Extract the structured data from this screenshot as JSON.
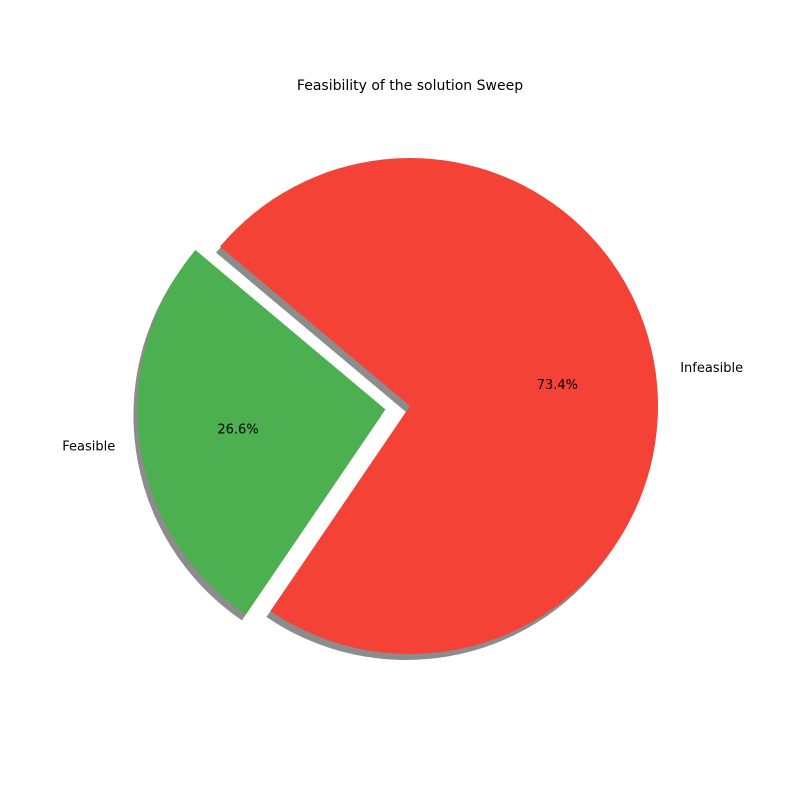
{
  "chart_data": {
    "type": "pie",
    "title": "Feasibility of the solution Sweep",
    "slices": [
      {
        "label": "Feasible",
        "value": 26.6,
        "pct_label": "26.6%",
        "color": "#4caf50",
        "exploded": true
      },
      {
        "label": "Infeasible",
        "value": 73.4,
        "pct_label": "73.4%",
        "color": "#f44336",
        "exploded": false
      }
    ],
    "shadow": true,
    "legend": "none"
  }
}
